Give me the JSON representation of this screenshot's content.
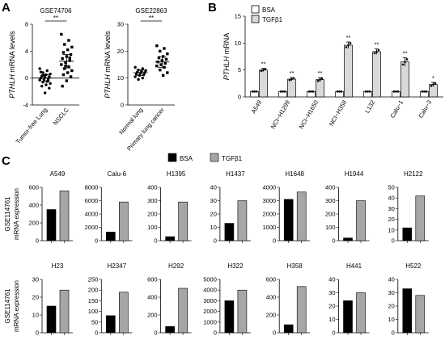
{
  "panel_labels": {
    "a": "A",
    "b": "B",
    "c": "C"
  },
  "colors": {
    "bsa": "#000000",
    "tgfb1": "#a6a6a6",
    "b_bsa": "#ffffff",
    "b_tgfb1": "#d9d9d9"
  },
  "chart_data": [
    {
      "id": "A1",
      "type": "scatter",
      "title": "GSE74706",
      "ylabel_italic": "PTHLH",
      "ylabel_rest": " mRNA levels",
      "categories": [
        "Tumor-free Lung",
        "NSCLC"
      ],
      "ylim": [
        -4,
        8
      ],
      "yticks": [
        -4,
        0,
        4,
        8
      ],
      "significance": "**",
      "groups": [
        {
          "name": "Tumor-free Lung",
          "mean": 0.0,
          "sem": 0.5,
          "points": [
            1.4,
            1.1,
            0.8,
            0.6,
            0.5,
            0.3,
            0.2,
            0.1,
            0.0,
            -0.1,
            -0.2,
            -0.3,
            -0.5,
            -0.6,
            -0.8,
            -1.0,
            -1.2,
            -1.5,
            -2.2,
            0.9,
            -0.4,
            0.4
          ]
        },
        {
          "name": "NSCLC",
          "mean": 2.5,
          "sem": 1.0,
          "points": [
            6.5,
            5.6,
            5.0,
            4.6,
            4.2,
            3.8,
            3.5,
            3.2,
            2.9,
            2.6,
            2.3,
            2.0,
            1.7,
            1.4,
            1.1,
            0.8,
            0.5,
            0.2,
            -0.4,
            -1.2,
            3.0,
            1.8
          ]
        }
      ]
    },
    {
      "id": "A2",
      "type": "scatter",
      "title": "GSE22863",
      "ylabel_italic": "PTHLH",
      "ylabel_rest": " mRNA levels",
      "categories": [
        "Normal lung",
        "Primary lung cancer"
      ],
      "ylim": [
        0,
        30
      ],
      "yticks": [
        0,
        10,
        20,
        30
      ],
      "significance": "**",
      "groups": [
        {
          "name": "Normal lung",
          "mean": 12.0,
          "sem": 1.0,
          "points": [
            14.0,
            13.5,
            13.0,
            12.8,
            12.5,
            12.2,
            12.0,
            11.8,
            11.5,
            11.2,
            11.0,
            10.5,
            10.0,
            9.5
          ]
        },
        {
          "name": "Primary lung cancer",
          "mean": 16.0,
          "sem": 2.0,
          "points": [
            22.0,
            21.0,
            20.0,
            19.0,
            18.0,
            17.5,
            17.0,
            16.5,
            16.0,
            15.5,
            15.0,
            14.5,
            14.0,
            13.0,
            12.0,
            11.0
          ]
        }
      ]
    },
    {
      "id": "B",
      "type": "bar",
      "ylabel_italic": "PTHLH",
      "ylabel_rest": " mRNA",
      "ylim": [
        0,
        15
      ],
      "yticks": [
        0,
        5,
        10,
        15
      ],
      "legend": [
        "BSA",
        "TGFβ1"
      ],
      "categories": [
        "A549",
        "NCI−H1299",
        "NCI−H1650",
        "NCI−H358",
        "L132",
        "Calu−1",
        "Calu−3"
      ],
      "series": [
        {
          "name": "BSA",
          "values": [
            1.0,
            1.0,
            1.0,
            1.0,
            1.0,
            1.0,
            1.0
          ]
        },
        {
          "name": "TGFβ1",
          "values": [
            5.0,
            3.3,
            3.2,
            9.6,
            8.4,
            6.5,
            2.3
          ]
        }
      ],
      "errors": [
        0.3,
        0.3,
        0.4,
        0.6,
        0.5,
        0.8,
        0.4
      ],
      "significance": [
        "**",
        "**",
        "**",
        "**",
        "**",
        "**",
        "*"
      ]
    },
    {
      "id": "C",
      "type": "bar",
      "legend": [
        "BSA",
        "TGFβ1"
      ],
      "row_label": "GSE114761",
      "ylabel": "mRNA expression",
      "charts": [
        {
          "title": "A549",
          "ylim": [
            0,
            600
          ],
          "yticks": [
            0,
            200,
            400,
            600
          ],
          "values": [
            350,
            560
          ]
        },
        {
          "title": "Calu-6",
          "ylim": [
            0,
            8000
          ],
          "yticks": [
            0,
            2000,
            4000,
            6000,
            8000
          ],
          "values": [
            1300,
            5800
          ]
        },
        {
          "title": "H1395",
          "ylim": [
            0,
            400
          ],
          "yticks": [
            0,
            100,
            200,
            300,
            400
          ],
          "values": [
            30,
            290
          ]
        },
        {
          "title": "H1437",
          "ylim": [
            0,
            40
          ],
          "yticks": [
            0,
            10,
            20,
            30,
            40
          ],
          "values": [
            13,
            30
          ]
        },
        {
          "title": "H1648",
          "ylim": [
            0,
            4000
          ],
          "yticks": [
            0,
            1000,
            2000,
            3000,
            4000
          ],
          "values": [
            3100,
            3650
          ]
        },
        {
          "title": "H1944",
          "ylim": [
            0,
            400
          ],
          "yticks": [
            0,
            100,
            200,
            300,
            400
          ],
          "values": [
            20,
            300
          ]
        },
        {
          "title": "H2122",
          "ylim": [
            0,
            50
          ],
          "yticks": [
            0,
            10,
            20,
            30,
            40,
            50
          ],
          "values": [
            12,
            42
          ]
        },
        {
          "title": "H23",
          "ylim": [
            0,
            30
          ],
          "yticks": [
            0,
            10,
            20,
            30
          ],
          "values": [
            15,
            24
          ]
        },
        {
          "title": "H2347",
          "ylim": [
            0,
            250
          ],
          "yticks": [
            0,
            50,
            100,
            150,
            200,
            250
          ],
          "values": [
            80,
            190
          ]
        },
        {
          "title": "H292",
          "ylim": [
            0,
            600
          ],
          "yticks": [
            0,
            200,
            400,
            600
          ],
          "values": [
            70,
            500
          ]
        },
        {
          "title": "H322",
          "ylim": [
            0,
            5000
          ],
          "yticks": [
            0,
            1000,
            2000,
            3000,
            4000,
            5000
          ],
          "values": [
            3000,
            4000
          ]
        },
        {
          "title": "H358",
          "ylim": [
            0,
            600
          ],
          "yticks": [
            0,
            200,
            400,
            600
          ],
          "values": [
            90,
            520
          ]
        },
        {
          "title": "H441",
          "ylim": [
            0,
            40
          ],
          "yticks": [
            0,
            10,
            20,
            30,
            40
          ],
          "values": [
            24,
            30
          ]
        },
        {
          "title": "H522",
          "ylim": [
            0,
            40
          ],
          "yticks": [
            0,
            10,
            20,
            30,
            40
          ],
          "values": [
            33,
            28
          ]
        }
      ]
    }
  ]
}
